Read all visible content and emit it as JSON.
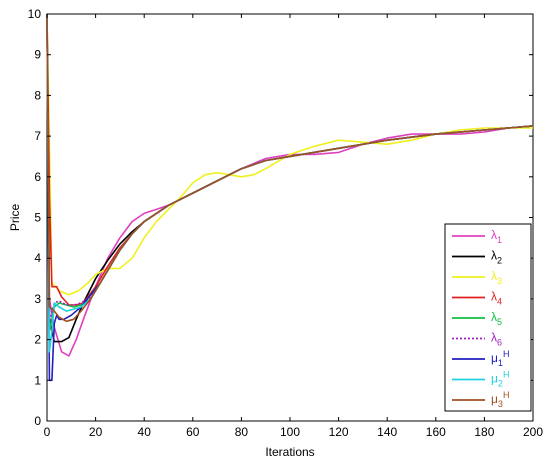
{
  "chart_data": {
    "type": "line",
    "title": "",
    "xlabel": "Iterations",
    "ylabel": "Price",
    "xlim": [
      0,
      200
    ],
    "ylim": [
      0,
      10
    ],
    "xticks": [
      0,
      20,
      40,
      60,
      80,
      100,
      120,
      140,
      160,
      180,
      200
    ],
    "yticks": [
      0,
      1,
      2,
      3,
      4,
      5,
      6,
      7,
      8,
      9,
      10
    ],
    "grid": false,
    "legend_position": "bottom-right",
    "series": [
      {
        "name": "λ",
        "sub": "1",
        "color": "#e040c0",
        "dash": "solid",
        "points": [
          [
            0,
            10
          ],
          [
            1,
            3.0
          ],
          [
            3,
            2.3
          ],
          [
            6,
            1.7
          ],
          [
            9,
            1.6
          ],
          [
            12,
            2.0
          ],
          [
            15,
            2.5
          ],
          [
            20,
            3.3
          ],
          [
            25,
            4.0
          ],
          [
            30,
            4.5
          ],
          [
            35,
            4.9
          ],
          [
            40,
            5.1
          ],
          [
            45,
            5.2
          ],
          [
            50,
            5.3
          ],
          [
            55,
            5.45
          ],
          [
            60,
            5.6
          ],
          [
            65,
            5.75
          ],
          [
            70,
            5.9
          ],
          [
            75,
            6.05
          ],
          [
            80,
            6.2
          ],
          [
            90,
            6.45
          ],
          [
            100,
            6.55
          ],
          [
            110,
            6.55
          ],
          [
            120,
            6.6
          ],
          [
            130,
            6.8
          ],
          [
            140,
            6.95
          ],
          [
            150,
            7.05
          ],
          [
            160,
            7.05
          ],
          [
            170,
            7.05
          ],
          [
            180,
            7.1
          ],
          [
            190,
            7.2
          ],
          [
            200,
            7.25
          ]
        ]
      },
      {
        "name": "λ",
        "sub": "2",
        "color": "#000000",
        "dash": "solid",
        "points": [
          [
            0,
            10
          ],
          [
            1,
            2.5
          ],
          [
            3,
            1.95
          ],
          [
            6,
            1.95
          ],
          [
            9,
            2.05
          ],
          [
            12,
            2.5
          ],
          [
            15,
            2.9
          ],
          [
            20,
            3.5
          ],
          [
            25,
            3.95
          ],
          [
            30,
            4.35
          ],
          [
            35,
            4.65
          ],
          [
            40,
            4.9
          ],
          [
            45,
            5.1
          ],
          [
            50,
            5.3
          ],
          [
            55,
            5.45
          ],
          [
            60,
            5.6
          ],
          [
            65,
            5.75
          ],
          [
            70,
            5.9
          ],
          [
            75,
            6.05
          ],
          [
            80,
            6.2
          ],
          [
            90,
            6.4
          ],
          [
            100,
            6.5
          ],
          [
            120,
            6.7
          ],
          [
            140,
            6.9
          ],
          [
            160,
            7.05
          ],
          [
            180,
            7.15
          ],
          [
            200,
            7.25
          ]
        ]
      },
      {
        "name": "λ",
        "sub": "3",
        "color": "#f0f020",
        "dash": "solid",
        "points": [
          [
            0,
            10
          ],
          [
            2,
            3.4
          ],
          [
            5,
            3.2
          ],
          [
            9,
            3.1
          ],
          [
            13,
            3.2
          ],
          [
            17,
            3.4
          ],
          [
            20,
            3.6
          ],
          [
            25,
            3.75
          ],
          [
            30,
            3.75
          ],
          [
            35,
            4.0
          ],
          [
            40,
            4.5
          ],
          [
            45,
            4.9
          ],
          [
            50,
            5.2
          ],
          [
            55,
            5.5
          ],
          [
            60,
            5.85
          ],
          [
            65,
            6.05
          ],
          [
            70,
            6.1
          ],
          [
            75,
            6.05
          ],
          [
            80,
            6.0
          ],
          [
            85,
            6.05
          ],
          [
            90,
            6.2
          ],
          [
            100,
            6.55
          ],
          [
            110,
            6.75
          ],
          [
            120,
            6.9
          ],
          [
            130,
            6.85
          ],
          [
            140,
            6.8
          ],
          [
            150,
            6.9
          ],
          [
            160,
            7.05
          ],
          [
            170,
            7.15
          ],
          [
            180,
            7.2
          ],
          [
            190,
            7.2
          ],
          [
            200,
            7.2
          ]
        ]
      },
      {
        "name": "λ",
        "sub": "4",
        "color": "#e02020",
        "dash": "solid",
        "points": [
          [
            0,
            10
          ],
          [
            1,
            5.5
          ],
          [
            2,
            3.3
          ],
          [
            4,
            3.3
          ],
          [
            6,
            3.05
          ],
          [
            9,
            2.85
          ],
          [
            12,
            2.85
          ],
          [
            15,
            2.9
          ],
          [
            20,
            3.3
          ],
          [
            25,
            3.8
          ],
          [
            30,
            4.25
          ],
          [
            35,
            4.6
          ],
          [
            40,
            4.9
          ],
          [
            45,
            5.1
          ],
          [
            50,
            5.3
          ],
          [
            60,
            5.6
          ],
          [
            70,
            5.9
          ],
          [
            80,
            6.2
          ],
          [
            90,
            6.4
          ],
          [
            100,
            6.5
          ],
          [
            120,
            6.7
          ],
          [
            140,
            6.9
          ],
          [
            160,
            7.05
          ],
          [
            180,
            7.15
          ],
          [
            200,
            7.25
          ]
        ]
      },
      {
        "name": "λ",
        "sub": "5",
        "color": "#10c040",
        "dash": "solid",
        "points": [
          [
            0,
            10
          ],
          [
            1,
            2.2
          ],
          [
            3,
            2.8
          ],
          [
            5,
            2.9
          ],
          [
            8,
            2.85
          ],
          [
            11,
            2.8
          ],
          [
            14,
            2.85
          ],
          [
            18,
            3.0
          ],
          [
            22,
            3.4
          ],
          [
            26,
            3.8
          ],
          [
            30,
            4.2
          ],
          [
            35,
            4.6
          ],
          [
            40,
            4.9
          ],
          [
            45,
            5.1
          ],
          [
            50,
            5.3
          ],
          [
            60,
            5.6
          ],
          [
            70,
            5.9
          ],
          [
            80,
            6.2
          ],
          [
            90,
            6.4
          ],
          [
            100,
            6.5
          ],
          [
            120,
            6.7
          ],
          [
            140,
            6.9
          ],
          [
            160,
            7.05
          ],
          [
            180,
            7.15
          ],
          [
            200,
            7.25
          ]
        ]
      },
      {
        "name": "λ",
        "sub": "6",
        "color": "#a020c0",
        "dash": "dotted",
        "points": [
          [
            0,
            10
          ],
          [
            1,
            2.4
          ],
          [
            3,
            2.9
          ],
          [
            5,
            2.95
          ],
          [
            8,
            2.85
          ],
          [
            11,
            2.85
          ],
          [
            14,
            2.9
          ],
          [
            18,
            3.05
          ],
          [
            22,
            3.4
          ],
          [
            26,
            3.8
          ],
          [
            30,
            4.2
          ],
          [
            35,
            4.6
          ],
          [
            40,
            4.9
          ],
          [
            45,
            5.1
          ],
          [
            50,
            5.3
          ],
          [
            60,
            5.6
          ],
          [
            70,
            5.9
          ],
          [
            80,
            6.2
          ],
          [
            90,
            6.4
          ],
          [
            100,
            6.5
          ],
          [
            120,
            6.7
          ],
          [
            140,
            6.9
          ],
          [
            160,
            7.05
          ],
          [
            180,
            7.15
          ],
          [
            200,
            7.25
          ]
        ]
      },
      {
        "name": "μ",
        "sub": "1",
        "sup": "H",
        "color": "#2020c0",
        "dash": "solid",
        "points": [
          [
            0,
            10
          ],
          [
            1,
            1.0
          ],
          [
            2,
            1.0
          ],
          [
            3,
            2.4
          ],
          [
            4,
            2.6
          ],
          [
            5,
            2.5
          ],
          [
            7,
            2.5
          ],
          [
            10,
            2.6
          ],
          [
            14,
            2.8
          ],
          [
            18,
            3.1
          ],
          [
            22,
            3.4
          ],
          [
            26,
            3.8
          ],
          [
            30,
            4.2
          ],
          [
            35,
            4.6
          ],
          [
            40,
            4.9
          ],
          [
            45,
            5.1
          ],
          [
            50,
            5.3
          ],
          [
            60,
            5.6
          ],
          [
            70,
            5.9
          ],
          [
            80,
            6.2
          ],
          [
            90,
            6.4
          ],
          [
            100,
            6.5
          ],
          [
            120,
            6.7
          ],
          [
            140,
            6.9
          ],
          [
            160,
            7.05
          ],
          [
            180,
            7.15
          ],
          [
            200,
            7.25
          ]
        ]
      },
      {
        "name": "μ",
        "sub": "2",
        "sup": "H",
        "color": "#20d0e0",
        "dash": "solid",
        "points": [
          [
            0,
            10
          ],
          [
            1,
            1.7
          ],
          [
            2,
            2.2
          ],
          [
            3,
            2.9
          ],
          [
            5,
            2.8
          ],
          [
            8,
            2.7
          ],
          [
            11,
            2.75
          ],
          [
            14,
            2.8
          ],
          [
            18,
            3.0
          ],
          [
            22,
            3.4
          ],
          [
            26,
            3.8
          ],
          [
            30,
            4.2
          ],
          [
            35,
            4.6
          ],
          [
            40,
            4.9
          ],
          [
            45,
            5.1
          ],
          [
            50,
            5.3
          ],
          [
            60,
            5.6
          ],
          [
            70,
            5.9
          ],
          [
            80,
            6.2
          ],
          [
            90,
            6.4
          ],
          [
            100,
            6.5
          ],
          [
            120,
            6.7
          ],
          [
            140,
            6.9
          ],
          [
            160,
            7.05
          ],
          [
            180,
            7.15
          ],
          [
            200,
            7.25
          ]
        ]
      },
      {
        "name": "μ",
        "sub": "3",
        "sup": "H",
        "color": "#a05020",
        "dash": "solid",
        "points": [
          [
            0,
            10
          ],
          [
            1,
            2.8
          ],
          [
            3,
            2.7
          ],
          [
            5,
            2.55
          ],
          [
            8,
            2.45
          ],
          [
            11,
            2.5
          ],
          [
            14,
            2.7
          ],
          [
            18,
            3.0
          ],
          [
            22,
            3.4
          ],
          [
            26,
            3.8
          ],
          [
            30,
            4.2
          ],
          [
            35,
            4.6
          ],
          [
            40,
            4.9
          ],
          [
            45,
            5.1
          ],
          [
            50,
            5.3
          ],
          [
            60,
            5.6
          ],
          [
            70,
            5.9
          ],
          [
            80,
            6.2
          ],
          [
            90,
            6.4
          ],
          [
            100,
            6.5
          ],
          [
            120,
            6.7
          ],
          [
            140,
            6.9
          ],
          [
            160,
            7.05
          ],
          [
            180,
            7.15
          ],
          [
            200,
            7.25
          ]
        ]
      }
    ]
  }
}
